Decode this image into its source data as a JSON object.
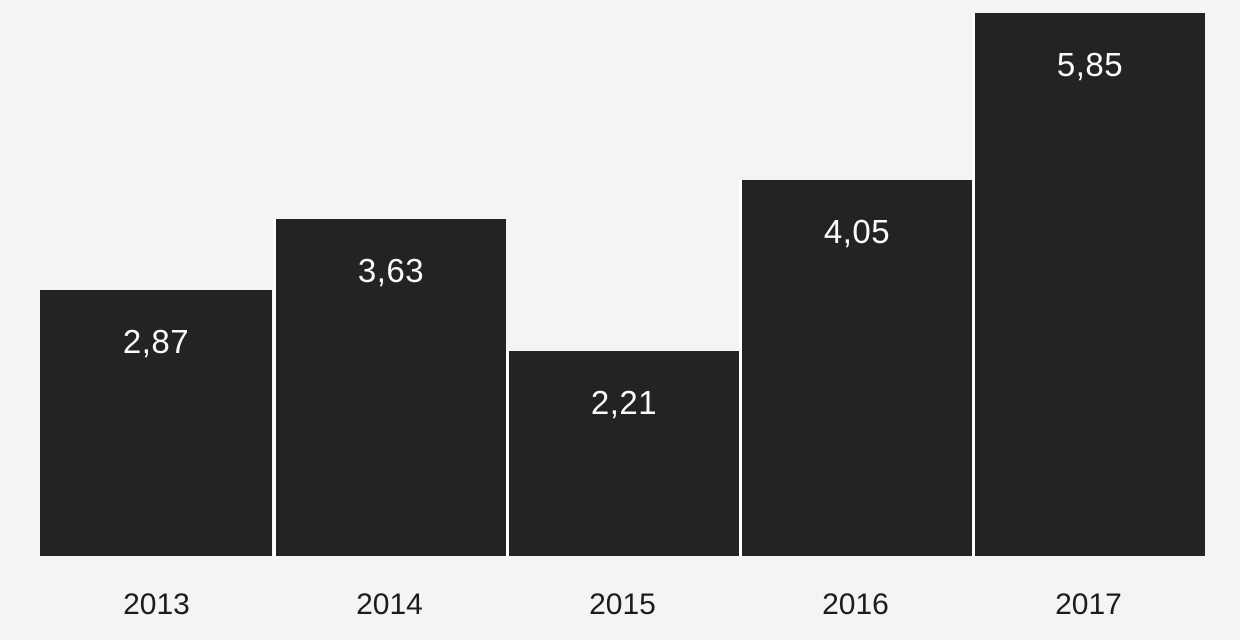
{
  "chart_data": {
    "type": "bar",
    "title": "",
    "xlabel": "",
    "ylabel": "",
    "categories": [
      "2013",
      "2014",
      "2015",
      "2016",
      "2017"
    ],
    "values": [
      2.87,
      3.63,
      2.21,
      4.05,
      5.85
    ],
    "value_labels": [
      "2,87",
      "3,63",
      "2,21",
      "4,05",
      "5,85"
    ],
    "ylim": [
      0,
      5.85
    ],
    "grid": "off",
    "legend": "none",
    "axes_lines": "none",
    "value_label_position": "inside-top",
    "colors": {
      "bar_fill": "#232323",
      "bar_separator": "#ffffff",
      "value_text": "#fafafa",
      "axis_text": "#1c1c1c",
      "background": "#f4f4f4"
    }
  }
}
